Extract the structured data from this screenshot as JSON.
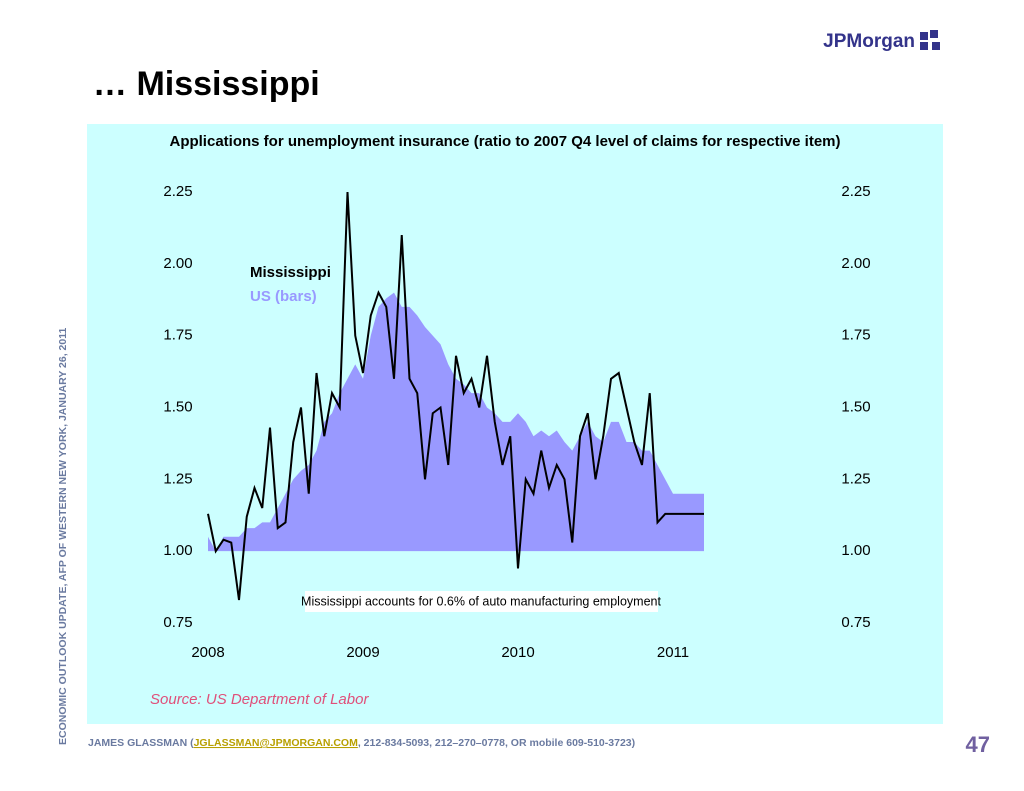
{
  "logo": "JPMorgan",
  "slide_title": "… Mississippi",
  "side_text": "ECONOMIC OUTLOOK UPDATE, AFP OF WESTERN NEW YORK, JANUARY 26, 2011",
  "footer": {
    "before": "JAMES GLASSMAN (",
    "link": "JGLASSMAN@JPMORGAN.COM",
    "after": ", 212-834-5093, 212–270–0778, OR mobile 609-510-3723)"
  },
  "page_number": "47",
  "chart_data": {
    "type": "line",
    "title": "Applications for unemployment insurance (ratio to 2007 Q4 level of claims for respective item)",
    "annotation": "Mississippi accounts for 0.6% of auto manufacturing employment",
    "source": "Source: US Department of Labor",
    "x": [
      2008.0,
      2008.05,
      2008.1,
      2008.15,
      2008.2,
      2008.25,
      2008.3,
      2008.35,
      2008.4,
      2008.45,
      2008.5,
      2008.55,
      2008.6,
      2008.65,
      2008.7,
      2008.75,
      2008.8,
      2008.85,
      2008.9,
      2008.95,
      2009.0,
      2009.05,
      2009.1,
      2009.15,
      2009.2,
      2009.25,
      2009.3,
      2009.35,
      2009.4,
      2009.45,
      2009.5,
      2009.55,
      2009.6,
      2009.65,
      2009.7,
      2009.75,
      2009.8,
      2009.85,
      2009.9,
      2009.95,
      2010.0,
      2010.05,
      2010.1,
      2010.15,
      2010.2,
      2010.25,
      2010.3,
      2010.35,
      2010.4,
      2010.45,
      2010.5,
      2010.55,
      2010.6,
      2010.65,
      2010.7,
      2010.75,
      2010.8,
      2010.85,
      2010.9,
      2010.95,
      2011.0,
      2011.05,
      2011.1,
      2011.15,
      2011.2
    ],
    "series": [
      {
        "name": "Mississippi",
        "color": "#000000",
        "style": "line",
        "values": [
          1.13,
          1.0,
          1.04,
          1.03,
          0.83,
          1.12,
          1.22,
          1.15,
          1.43,
          1.08,
          1.1,
          1.38,
          1.5,
          1.2,
          1.62,
          1.4,
          1.55,
          1.5,
          2.25,
          1.75,
          1.62,
          1.82,
          1.9,
          1.85,
          1.6,
          2.1,
          1.6,
          1.55,
          1.25,
          1.48,
          1.5,
          1.3,
          1.68,
          1.55,
          1.6,
          1.5,
          1.68,
          1.45,
          1.3,
          1.4,
          0.94,
          1.25,
          1.2,
          1.35,
          1.22,
          1.3,
          1.25,
          1.03,
          1.4,
          1.48,
          1.25,
          1.4,
          1.6,
          1.62,
          1.5,
          1.38,
          1.3,
          1.55,
          1.1,
          1.13,
          1.13,
          1.13,
          1.13,
          1.13,
          1.13
        ]
      },
      {
        "name": "US (bars)",
        "color": "#9999ff",
        "style": "area",
        "values": [
          1.05,
          1.0,
          1.05,
          1.05,
          1.05,
          1.08,
          1.08,
          1.1,
          1.1,
          1.15,
          1.2,
          1.25,
          1.28,
          1.3,
          1.35,
          1.45,
          1.48,
          1.55,
          1.6,
          1.65,
          1.6,
          1.75,
          1.85,
          1.88,
          1.9,
          1.85,
          1.85,
          1.82,
          1.78,
          1.75,
          1.72,
          1.65,
          1.6,
          1.58,
          1.55,
          1.55,
          1.5,
          1.48,
          1.45,
          1.45,
          1.48,
          1.45,
          1.4,
          1.42,
          1.4,
          1.42,
          1.38,
          1.35,
          1.4,
          1.45,
          1.4,
          1.38,
          1.45,
          1.45,
          1.38,
          1.38,
          1.35,
          1.35,
          1.3,
          1.25,
          1.2,
          1.2,
          1.2,
          1.2,
          1.2
        ]
      }
    ],
    "baseline": 1,
    "xlim": [
      2008,
      2011.25
    ],
    "xticks": [
      2008,
      2009,
      2010,
      2011
    ],
    "ylim": [
      0.75,
      2.25
    ],
    "yticks": [
      0.75,
      {
        "value": 1,
        "label": "1.00"
      },
      1.25,
      {
        "value": 1.5,
        "label": "1.50"
      },
      1.75,
      {
        "value": 2,
        "label": "2.00"
      },
      2.25
    ],
    "y2lim": [
      0.75,
      2.25
    ],
    "y2ticks": [
      0.75,
      {
        "value": 1,
        "label": "1.00"
      },
      1.25,
      {
        "value": 1.5,
        "label": "1.50"
      },
      1.75,
      {
        "value": 2,
        "label": "2.00"
      },
      2.25
    ]
  }
}
